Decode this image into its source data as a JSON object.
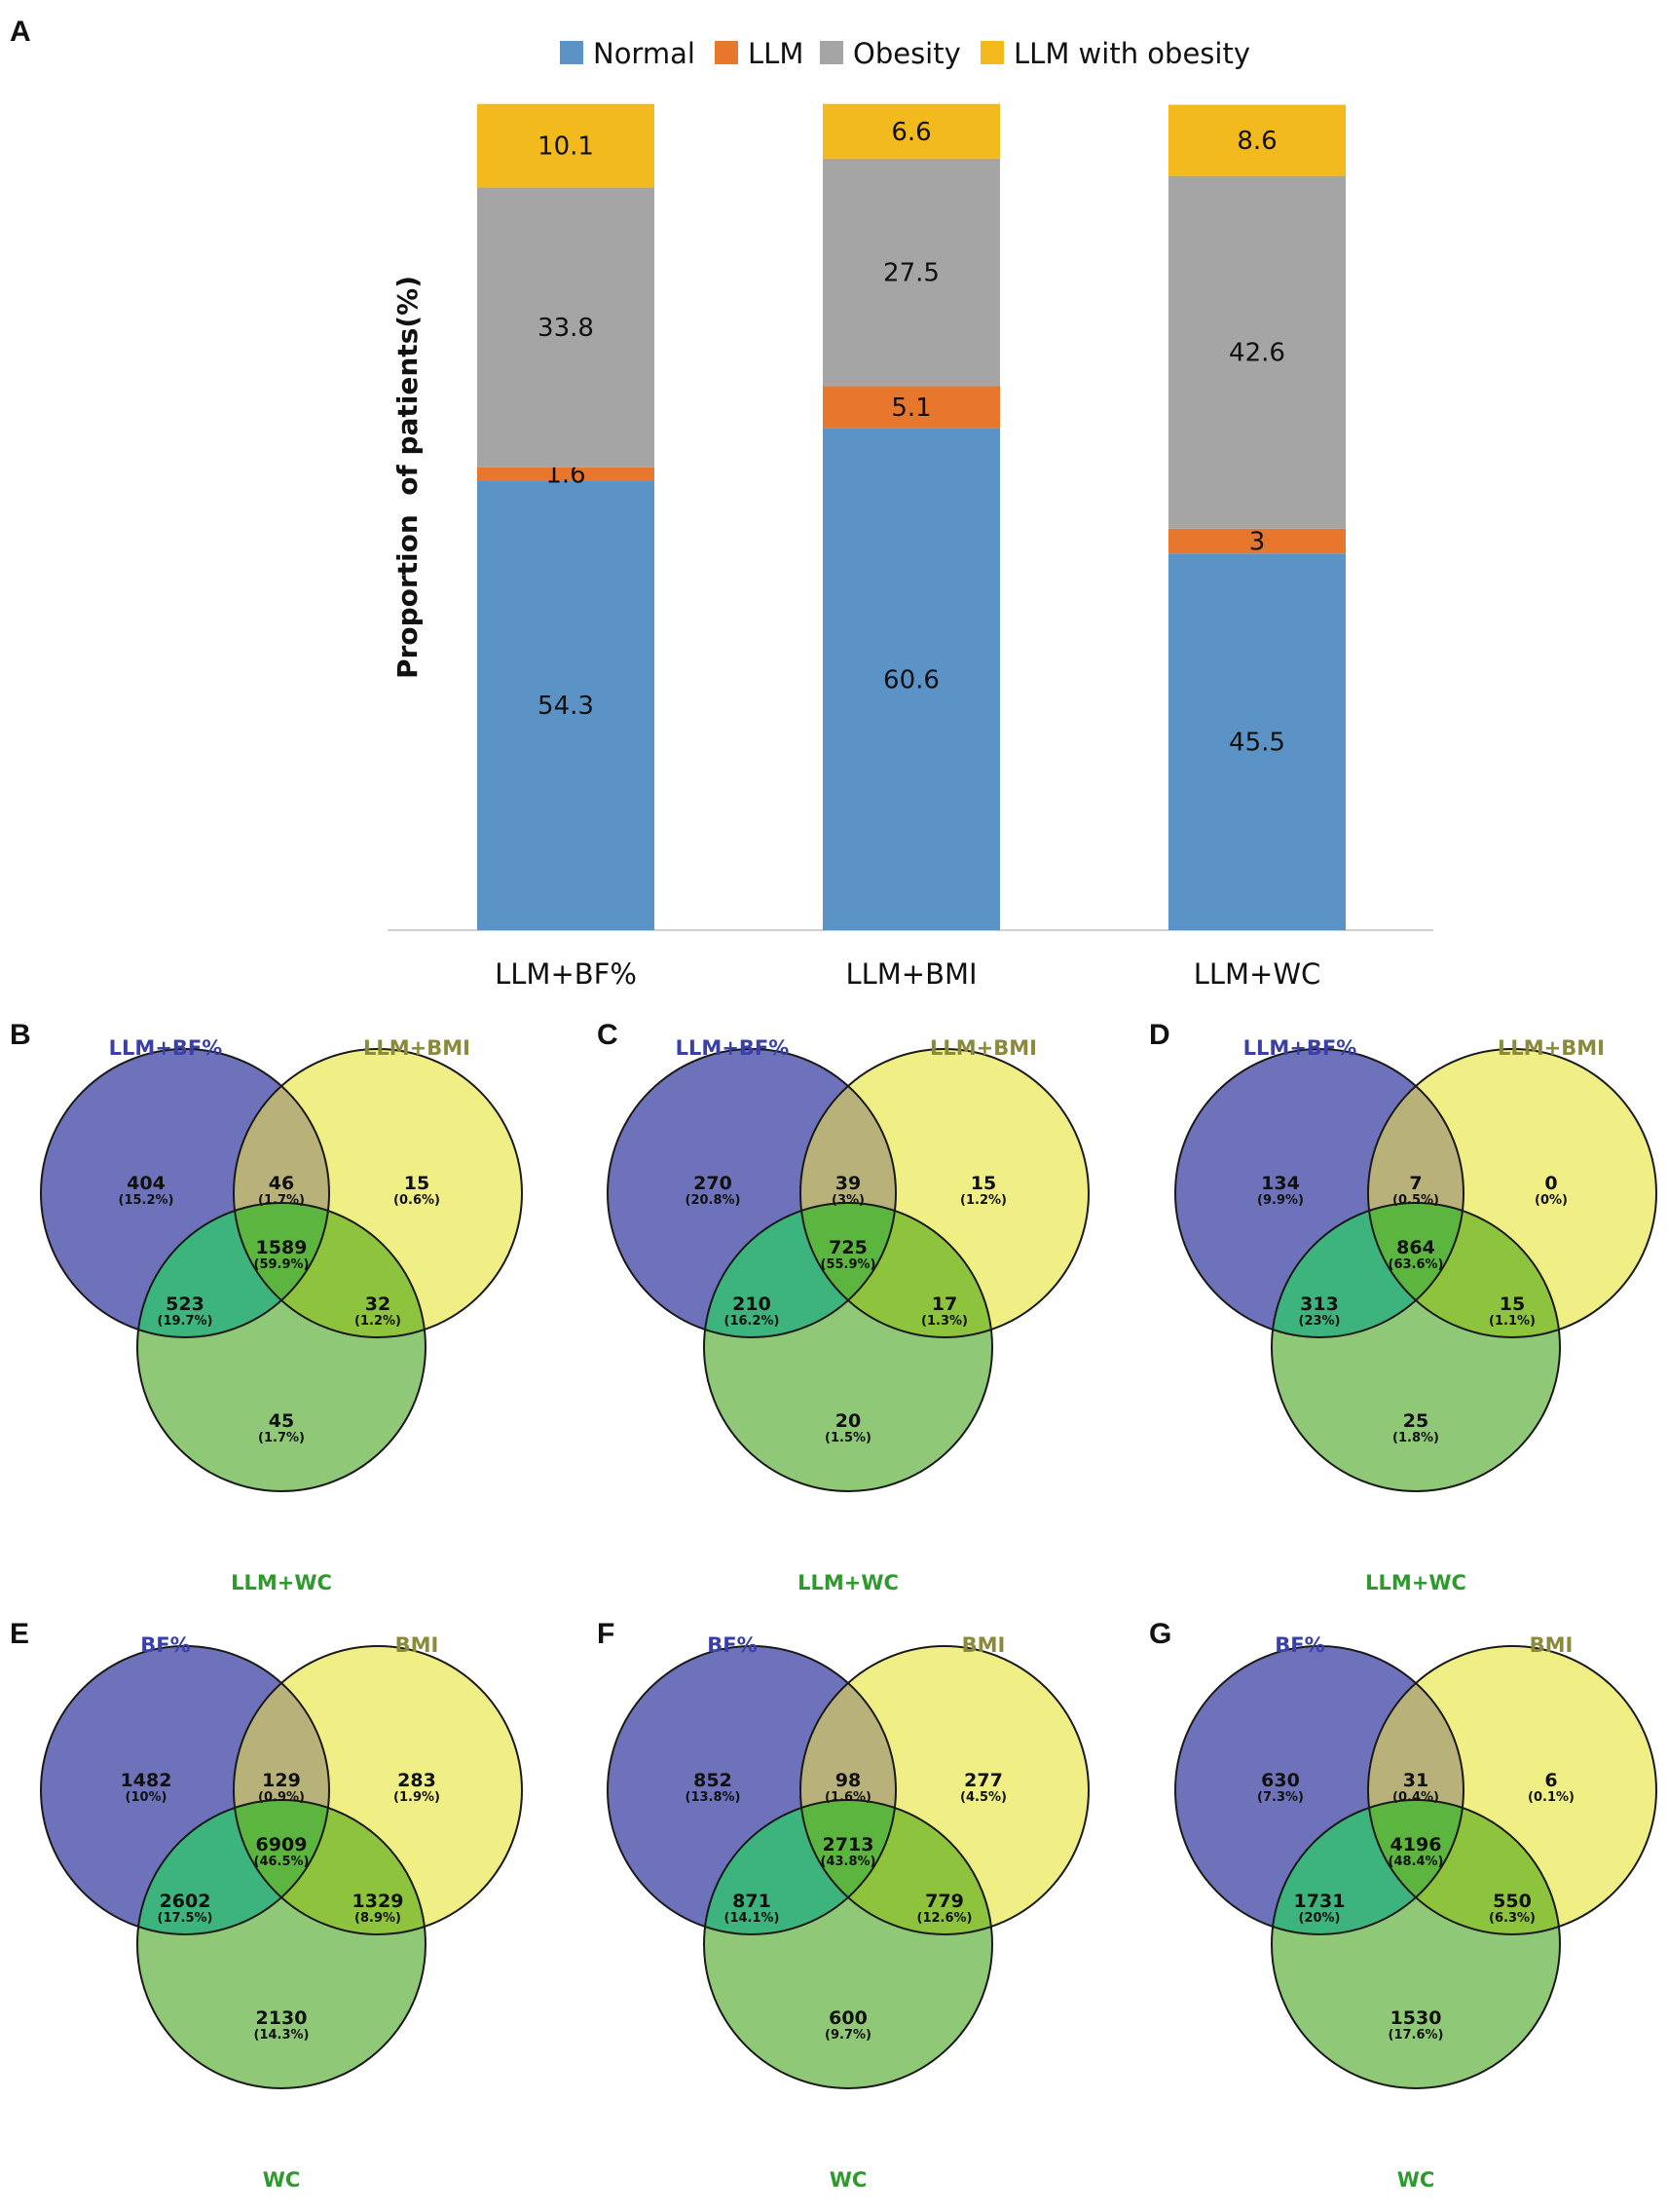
{
  "panels": {
    "A": "A",
    "B": "B",
    "C": "C",
    "D": "D",
    "E": "E",
    "F": "F",
    "G": "G"
  },
  "chart_data": [
    {
      "panel": "A",
      "type": "bar",
      "stacked": true,
      "categories": [
        "LLM+BF%",
        "LLM+BMI",
        "LLM+WC"
      ],
      "series": [
        {
          "name": "Normal",
          "color": "#5B93C7",
          "values": [
            54.3,
            60.6,
            45.5
          ]
        },
        {
          "name": "LLM",
          "color": "#E8772E",
          "values": [
            1.6,
            5.1,
            3
          ]
        },
        {
          "name": "Obesity",
          "color": "#A5A5A5",
          "values": [
            33.8,
            27.5,
            42.6
          ]
        },
        {
          "name": "LLM with obesity",
          "color": "#F2BA1C",
          "values": [
            10.1,
            6.6,
            8.6
          ]
        }
      ],
      "xlabel": "",
      "ylabel": "Proportion  of patients(%)",
      "ylim": [
        0,
        100
      ],
      "legend": "top",
      "grid": false
    },
    {
      "panel": "B",
      "type": "venn",
      "set_labels": [
        "LLM+BF%",
        "LLM+BMI",
        "LLM+WC"
      ],
      "regions": {
        "A": {
          "n": "404",
          "pct": "(15.2%)"
        },
        "B": {
          "n": "15",
          "pct": "(0.6%)"
        },
        "C": {
          "n": "45",
          "pct": "(1.7%)"
        },
        "AB": {
          "n": "46",
          "pct": "(1.7%)"
        },
        "AC": {
          "n": "523",
          "pct": "(19.7%)"
        },
        "BC": {
          "n": "32",
          "pct": "(1.2%)"
        },
        "ABC": {
          "n": "1589",
          "pct": "(59.9%)"
        }
      }
    },
    {
      "panel": "C",
      "type": "venn",
      "set_labels": [
        "LLM+BF%",
        "LLM+BMI",
        "LLM+WC"
      ],
      "regions": {
        "A": {
          "n": "270",
          "pct": "(20.8%)"
        },
        "B": {
          "n": "15",
          "pct": "(1.2%)"
        },
        "C": {
          "n": "20",
          "pct": "(1.5%)"
        },
        "AB": {
          "n": "39",
          "pct": "(3%)"
        },
        "AC": {
          "n": "210",
          "pct": "(16.2%)"
        },
        "BC": {
          "n": "17",
          "pct": "(1.3%)"
        },
        "ABC": {
          "n": "725",
          "pct": "(55.9%)"
        }
      }
    },
    {
      "panel": "D",
      "type": "venn",
      "set_labels": [
        "LLM+BF%",
        "LLM+BMI",
        "LLM+WC"
      ],
      "regions": {
        "A": {
          "n": "134",
          "pct": "(9.9%)"
        },
        "B": {
          "n": "0",
          "pct": "(0%)"
        },
        "C": {
          "n": "25",
          "pct": "(1.8%)"
        },
        "AB": {
          "n": "7",
          "pct": "(0.5%)"
        },
        "AC": {
          "n": "313",
          "pct": "(23%)"
        },
        "BC": {
          "n": "15",
          "pct": "(1.1%)"
        },
        "ABC": {
          "n": "864",
          "pct": "(63.6%)"
        }
      }
    },
    {
      "panel": "E",
      "type": "venn",
      "set_labels": [
        "BF%",
        "BMI",
        "WC"
      ],
      "regions": {
        "A": {
          "n": "1482",
          "pct": "(10%)"
        },
        "B": {
          "n": "283",
          "pct": "(1.9%)"
        },
        "C": {
          "n": "2130",
          "pct": "(14.3%)"
        },
        "AB": {
          "n": "129",
          "pct": "(0.9%)"
        },
        "AC": {
          "n": "2602",
          "pct": "(17.5%)"
        },
        "BC": {
          "n": "1329",
          "pct": "(8.9%)"
        },
        "ABC": {
          "n": "6909",
          "pct": "(46.5%)"
        }
      }
    },
    {
      "panel": "F",
      "type": "venn",
      "set_labels": [
        "BF%",
        "BMI",
        "WC"
      ],
      "regions": {
        "A": {
          "n": "852",
          "pct": "(13.8%)"
        },
        "B": {
          "n": "277",
          "pct": "(4.5%)"
        },
        "C": {
          "n": "600",
          "pct": "(9.7%)"
        },
        "AB": {
          "n": "98",
          "pct": "(1.6%)"
        },
        "AC": {
          "n": "871",
          "pct": "(14.1%)"
        },
        "BC": {
          "n": "779",
          "pct": "(12.6%)"
        },
        "ABC": {
          "n": "2713",
          "pct": "(43.8%)"
        }
      }
    },
    {
      "panel": "G",
      "type": "venn",
      "set_labels": [
        "BF%",
        "BMI",
        "WC"
      ],
      "regions": {
        "A": {
          "n": "630",
          "pct": "(7.3%)"
        },
        "B": {
          "n": "6",
          "pct": "(0.1%)"
        },
        "C": {
          "n": "1530",
          "pct": "(17.6%)"
        },
        "AB": {
          "n": "31",
          "pct": "(0.4%)"
        },
        "AC": {
          "n": "1731",
          "pct": "(20%)"
        },
        "BC": {
          "n": "550",
          "pct": "(6.3%)"
        },
        "ABC": {
          "n": "4196",
          "pct": "(48.4%)"
        }
      }
    }
  ]
}
